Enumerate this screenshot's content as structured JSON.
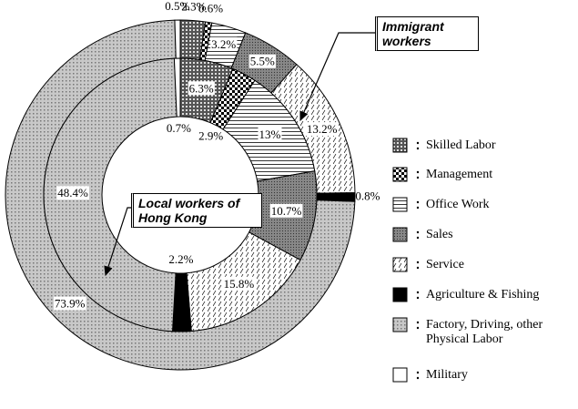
{
  "chart_data": {
    "type": "pie",
    "categories": [
      "Skilled Labor",
      "Management",
      "Office Work",
      "Sales",
      "Service",
      "Agriculture & Fishing",
      "Factory, Driving, other Physical Labor",
      "Military"
    ],
    "series": [
      {
        "name": "Immigrant workers",
        "values": [
          2.3,
          0.6,
          3.2,
          5.5,
          13.2,
          0.8,
          73.9,
          0.5
        ],
        "value_labels": [
          "2.3%",
          "0.6%",
          "3.2%",
          "5.5%",
          "13.2%",
          "0.8%",
          "73.9%",
          "0.5%"
        ]
      },
      {
        "name": "Local workers of Hong Kong",
        "values": [
          6.3,
          2.9,
          13,
          10.7,
          15.8,
          2.2,
          48.4,
          0.7
        ],
        "value_labels": [
          "6.3%",
          "2.9%",
          "13%",
          "10.7%",
          "15.8%",
          "2.2%",
          "48.4%",
          "0.7%"
        ]
      }
    ]
  }
}
